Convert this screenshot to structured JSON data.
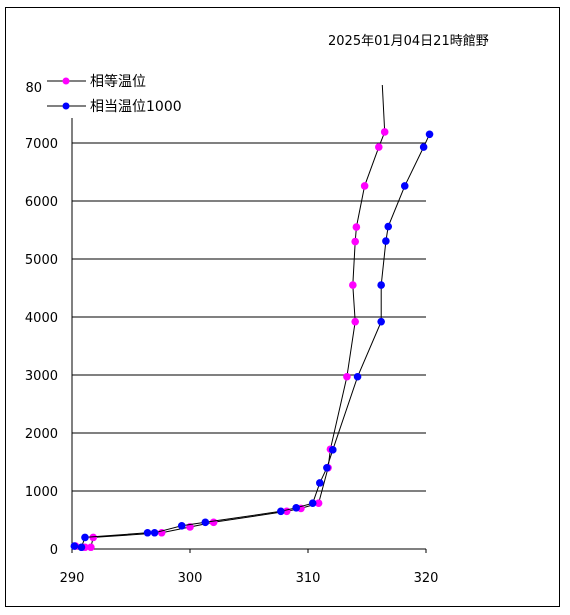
{
  "chart_data": {
    "type": "line",
    "title": "2025年01月04日21時館野",
    "xlabel": "",
    "ylabel": "",
    "xlim": [
      290,
      320
    ],
    "ylim": [
      0,
      7000
    ],
    "x_ticks": [
      290,
      300,
      310,
      320
    ],
    "y_ticks": [
      0,
      1000,
      2000,
      3000,
      4000,
      5000,
      6000,
      7000
    ],
    "extra_y_label": "80",
    "grid": "horizontal",
    "legend_position": "top-left",
    "series": [
      {
        "name": "相等温位",
        "color": "#ff00ff",
        "points": [
          [
            290.3,
            50
          ],
          [
            291.1,
            30
          ],
          [
            291.6,
            30
          ],
          [
            291.8,
            200
          ],
          [
            297.6,
            280
          ],
          [
            300.0,
            380
          ],
          [
            302.0,
            460
          ],
          [
            308.2,
            650
          ],
          [
            309.4,
            700
          ],
          [
            310.9,
            790
          ],
          [
            311.7,
            1400
          ],
          [
            311.9,
            1720
          ],
          [
            313.3,
            2970
          ],
          [
            314.0,
            3920
          ],
          [
            313.8,
            4550
          ],
          [
            314.0,
            5300
          ],
          [
            314.1,
            5550
          ],
          [
            314.8,
            6260
          ],
          [
            316.0,
            6930
          ],
          [
            316.5,
            7190
          ],
          [
            316.3,
            8000
          ]
        ]
      },
      {
        "name": "相当温位1000",
        "color": "#0000ff",
        "points": [
          [
            290.2,
            50
          ],
          [
            290.8,
            30
          ],
          [
            291.1,
            200
          ],
          [
            296.4,
            280
          ],
          [
            297.0,
            280
          ],
          [
            299.3,
            400
          ],
          [
            301.3,
            460
          ],
          [
            307.7,
            650
          ],
          [
            309.0,
            710
          ],
          [
            310.4,
            790
          ],
          [
            311.0,
            1140
          ],
          [
            311.6,
            1400
          ],
          [
            312.1,
            1710
          ],
          [
            314.2,
            2970
          ],
          [
            316.2,
            3920
          ],
          [
            316.2,
            4550
          ],
          [
            316.6,
            5310
          ],
          [
            316.8,
            5560
          ],
          [
            318.2,
            6260
          ],
          [
            319.8,
            6930
          ],
          [
            320.3,
            7150
          ]
        ]
      }
    ]
  }
}
